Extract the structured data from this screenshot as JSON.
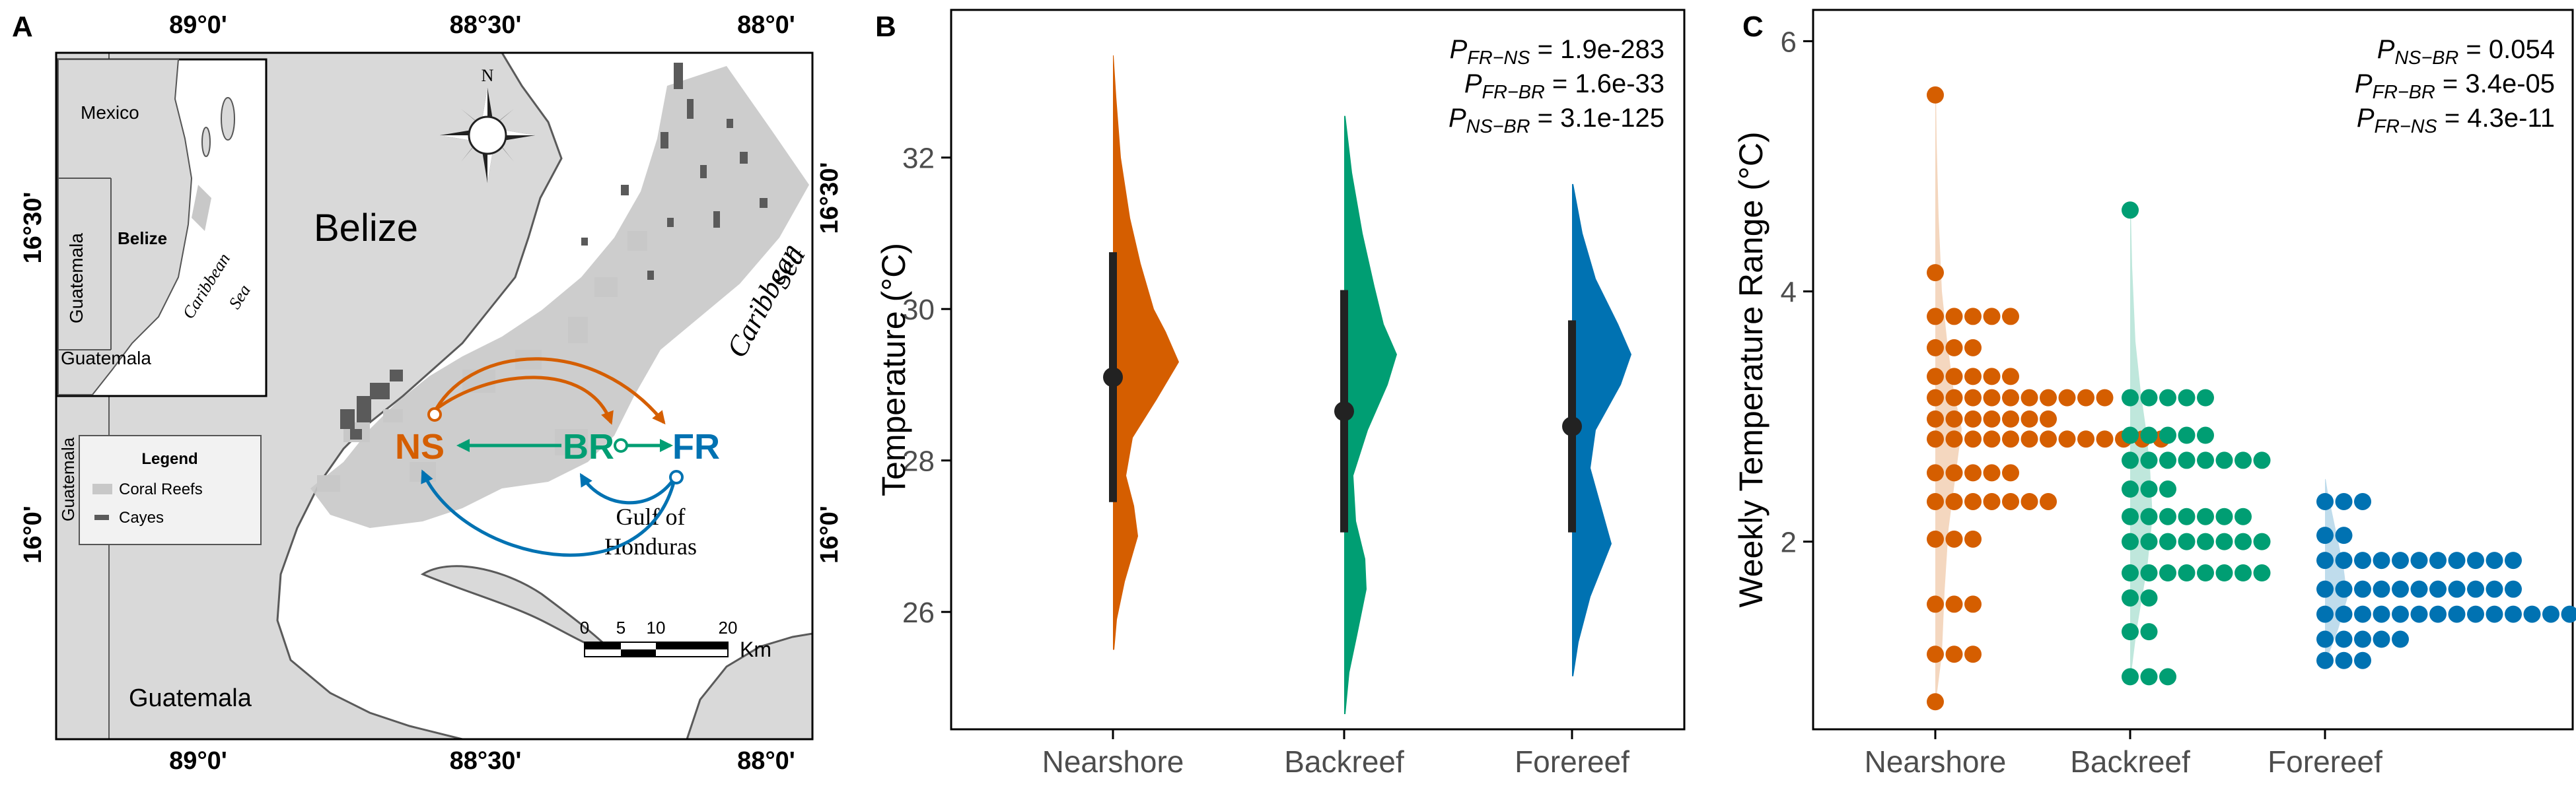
{
  "map": {
    "panel_label": "A",
    "top_ticks": [
      "89°0'",
      "88°30'",
      "88°0'"
    ],
    "bottom_ticks": [
      "89°0'",
      "88°30'",
      "88°0'"
    ],
    "left_ticks": [
      "16°30'",
      "16°0'"
    ],
    "right_ticks": [
      "16°30'",
      "16°0'"
    ],
    "place_belize": "Belize",
    "place_guatemala_bottom": "Guatemala",
    "place_guatemala_side": "Guatemala",
    "place_caribbean": [
      "Caribbean",
      "Sea"
    ],
    "place_gulf": [
      "Gulf of",
      "Honduras"
    ],
    "compass_n": "N",
    "sites": {
      "ns": "NS",
      "br": "BR",
      "fr": "FR"
    },
    "inset": {
      "mexico": "Mexico",
      "guatemala_top": "Guatemala",
      "belize": "Belize",
      "guatemala_bottom": "Guatemala",
      "caribbean": [
        "Caribbean",
        "Sea"
      ]
    },
    "legend": {
      "title": "Legend",
      "items": [
        "Coral Reefs",
        "Cayes"
      ]
    },
    "scalebar": {
      "ticks": [
        "0",
        "5",
        "10",
        "20"
      ],
      "unit": "Km"
    },
    "colors": {
      "ns": "#D55E00",
      "br": "#009E73",
      "fr": "#0072B2",
      "reef": "#C8C8C8",
      "cayes": "#5A5A5A",
      "land": "#D9D9D9"
    }
  },
  "chart_data": [
    {
      "panel_label": "B",
      "type": "violin",
      "categories": [
        "Nearshore",
        "Backreef",
        "Forereef"
      ],
      "ylabel": "Temperature (°C)",
      "yticks": [
        26,
        28,
        30,
        32
      ],
      "ylim": [
        24.45,
        33.95
      ],
      "colors": [
        "#D55E00",
        "#009E73",
        "#0072B2"
      ],
      "series": [
        {
          "min": 25.5,
          "max": 33.35,
          "mean": 29.1,
          "lower": 27.45,
          "upper": 30.75
        },
        {
          "min": 24.65,
          "max": 32.55,
          "mean": 28.65,
          "lower": 27.05,
          "upper": 30.25
        },
        {
          "min": 25.15,
          "max": 31.65,
          "mean": 28.45,
          "lower": 27.05,
          "upper": 29.85
        }
      ],
      "annotations": [
        {
          "p": "P",
          "sub": "FR−NS",
          "value": " = 1.9e-283"
        },
        {
          "p": "P",
          "sub": "FR−BR",
          "value": " = 1.6e-33"
        },
        {
          "p": "P",
          "sub": "NS−BR",
          "value": " = 3.1e-125"
        }
      ]
    },
    {
      "panel_label": "C",
      "type": "dotplot",
      "categories": [
        "Nearshore",
        "Backreef",
        "Forereef"
      ],
      "ylabel": "Weekly Temperature Range (°C)",
      "yticks": [
        2,
        4,
        6
      ],
      "ylim": [
        0.5,
        6.25
      ],
      "colors": [
        "#D55E00",
        "#009E73",
        "#0072B2"
      ],
      "series": [
        {
          "name": "Nearshore",
          "bins": [
            [
              0.72,
              1
            ],
            [
              1.1,
              3
            ],
            [
              1.5,
              3
            ],
            [
              2.02,
              3
            ],
            [
              2.32,
              7
            ],
            [
              2.55,
              5
            ],
            [
              2.82,
              13
            ],
            [
              2.98,
              7
            ],
            [
              3.15,
              10
            ],
            [
              3.32,
              5
            ],
            [
              3.55,
              3
            ],
            [
              3.8,
              5
            ],
            [
              4.15,
              1
            ],
            [
              5.57,
              1
            ]
          ]
        },
        {
          "name": "Backreef",
          "bins": [
            [
              0.92,
              3
            ],
            [
              1.28,
              2
            ],
            [
              1.55,
              2
            ],
            [
              1.75,
              8
            ],
            [
              2.0,
              8
            ],
            [
              2.2,
              7
            ],
            [
              2.42,
              3
            ],
            [
              2.65,
              8
            ],
            [
              2.85,
              5
            ],
            [
              3.15,
              5
            ],
            [
              4.65,
              1
            ]
          ]
        },
        {
          "name": "Forereef",
          "bins": [
            [
              1.05,
              3
            ],
            [
              1.22,
              5
            ],
            [
              1.42,
              14
            ],
            [
              1.62,
              11
            ],
            [
              1.85,
              11
            ],
            [
              2.05,
              2
            ],
            [
              2.32,
              3
            ]
          ]
        }
      ],
      "annotations": [
        {
          "p": "P",
          "sub": "NS−BR",
          "value": " = 0.054"
        },
        {
          "p": "P",
          "sub": "FR−BR",
          "value": " = 3.4e-05"
        },
        {
          "p": "P",
          "sub": "FR−NS",
          "value": " = 4.3e-11"
        }
      ]
    }
  ]
}
